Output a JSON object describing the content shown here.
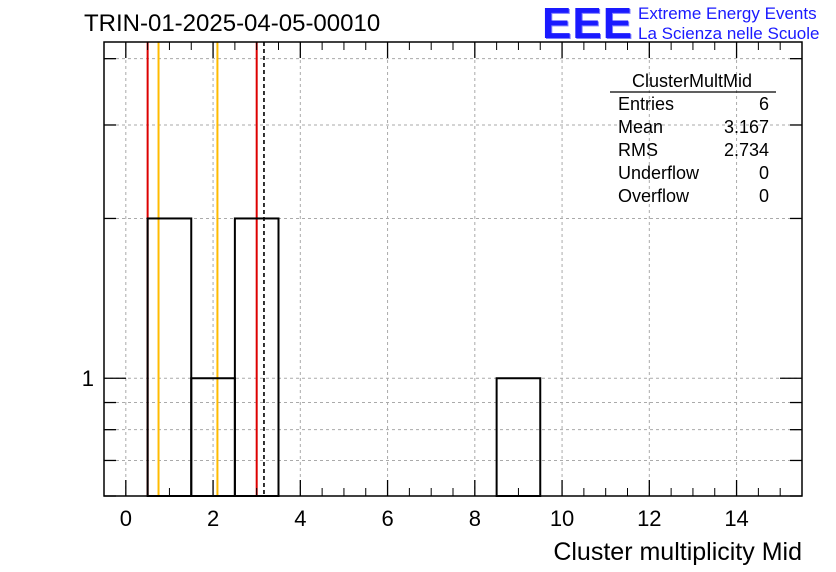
{
  "header": {
    "run_title": "TRIN-01-2025-04-05-00010"
  },
  "logo": {
    "mark": "EEE",
    "line1": "Extreme Energy Events",
    "line2": "La Scienza nelle Scuole",
    "color": "#1a1aff"
  },
  "stats_box": {
    "title": "ClusterMultMid",
    "rows": [
      {
        "label": "Entries",
        "value": "6"
      },
      {
        "label": "Mean",
        "value": "3.167"
      },
      {
        "label": "RMS",
        "value": "2.734"
      },
      {
        "label": "Underflow",
        "value": "0"
      },
      {
        "label": "Overflow",
        "value": "0"
      }
    ]
  },
  "chart_data": {
    "type": "histogram",
    "xlabel": "Cluster multiplicity Mid",
    "ylabel": "",
    "xlim": [
      -0.5,
      15.5
    ],
    "ylim": [
      0.6,
      4.3
    ],
    "yscale": "log",
    "grid": true,
    "x_ticks": [
      0,
      2,
      4,
      6,
      8,
      10,
      12,
      14
    ],
    "y_tick_labels": [
      {
        "value": 1,
        "label": "1"
      }
    ],
    "bins": [
      {
        "x0": 0.5,
        "x1": 1.5,
        "count": 2
      },
      {
        "x0": 1.5,
        "x1": 2.5,
        "count": 1
      },
      {
        "x0": 2.5,
        "x1": 3.5,
        "count": 2
      },
      {
        "x0": 8.5,
        "x1": 9.5,
        "count": 1
      }
    ],
    "markers": [
      {
        "x": 0.5,
        "color": "#dd0000",
        "style": "solid"
      },
      {
        "x": 3.0,
        "color": "#dd0000",
        "style": "solid"
      },
      {
        "x": 0.75,
        "color": "#ffbb00",
        "style": "solid"
      },
      {
        "x": 2.1,
        "color": "#ffbb00",
        "style": "solid"
      },
      {
        "x": 3.167,
        "color": "#000000",
        "style": "dashed"
      }
    ]
  }
}
